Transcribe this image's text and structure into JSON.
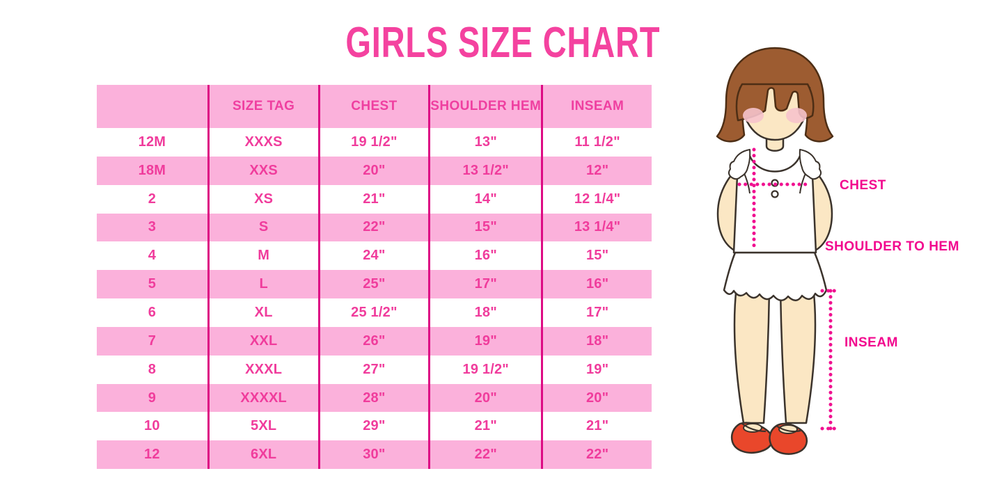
{
  "title": "GIRLS SIZE CHART",
  "chart_data": {
    "type": "table",
    "title": "GIRLS SIZE CHART",
    "columns": [
      "",
      "SIZE TAG",
      "CHEST",
      "SHOULDER HEM",
      "INSEAM"
    ],
    "rows": [
      [
        "12M",
        "XXXS",
        "19 1/2\"",
        "13\"",
        "11 1/2\""
      ],
      [
        "18M",
        "XXS",
        "20\"",
        "13 1/2\"",
        "12\""
      ],
      [
        "2",
        "XS",
        "21\"",
        "14\"",
        "12 1/4\""
      ],
      [
        "3",
        "S",
        "22\"",
        "15\"",
        "13 1/4\""
      ],
      [
        "4",
        "M",
        "24\"",
        "16\"",
        "15\""
      ],
      [
        "5",
        "L",
        "25\"",
        "17\"",
        "16\""
      ],
      [
        "6",
        "XL",
        "25 1/2\"",
        "18\"",
        "17\""
      ],
      [
        "7",
        "XXL",
        "26\"",
        "19\"",
        "18\""
      ],
      [
        "8",
        "XXXL",
        "27\"",
        "19 1/2\"",
        "19\""
      ],
      [
        "9",
        "XXXXL",
        "28\"",
        "20\"",
        "20\""
      ],
      [
        "10",
        "5XL",
        "29\"",
        "21\"",
        "21\""
      ],
      [
        "12",
        "6XL",
        "30\"",
        "22\"",
        "22\""
      ]
    ],
    "row_striping": [
      "white",
      "pink"
    ],
    "layout_hints": {
      "grid": "vertical magenta separators between columns",
      "header_background": "pink"
    }
  },
  "figure": {
    "labels": {
      "chest": "CHEST",
      "shoulder_to_hem": "SHOULDER TO HEM",
      "inseam": "INSEAM"
    }
  },
  "colors": {
    "title_pink": "#F4429F",
    "row_pink": "#FBB1DB",
    "grid_line": "#DD0B84",
    "cell_text": "#F03C9C",
    "label_pink": "#F2078E",
    "dotted_line": "#F01090",
    "hair_brown": "#9D5C31",
    "skin": "#FBE7C4",
    "blush": "#F6C3CC",
    "shoe_red": "#E9472B"
  }
}
